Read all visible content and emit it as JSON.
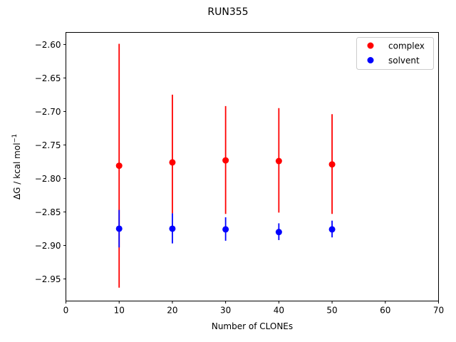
{
  "chart_data": {
    "type": "scatter",
    "title": "RUN355",
    "xlabel": "Number of CLONEs",
    "ylabel": "ΔG / kcal mol",
    "ylabel_superscript": "−1",
    "xlim": [
      0,
      70
    ],
    "ylim": [
      -2.983,
      -2.582
    ],
    "x_ticks": [
      0,
      10,
      20,
      30,
      40,
      50,
      60,
      70
    ],
    "x_tick_labels": [
      "0",
      "10",
      "20",
      "30",
      "40",
      "50",
      "60",
      "70"
    ],
    "y_ticks": [
      -2.95,
      -2.9,
      -2.85,
      -2.8,
      -2.75,
      -2.7,
      -2.65,
      -2.6
    ],
    "y_tick_labels": [
      "−2.95",
      "−2.90",
      "−2.85",
      "−2.80",
      "−2.75",
      "−2.70",
      "−2.65",
      "−2.60"
    ],
    "grid": false,
    "legend_position": "top-right",
    "series": [
      {
        "name": "complex",
        "color": "#ff0000",
        "x": [
          10,
          20,
          30,
          40,
          50
        ],
        "y": [
          -2.781,
          -2.776,
          -2.773,
          -2.774,
          -2.779
        ],
        "err_low": [
          -2.963,
          -2.852,
          -2.853,
          -2.851,
          -2.853
        ],
        "err_high": [
          -2.599,
          -2.675,
          -2.692,
          -2.695,
          -2.704
        ]
      },
      {
        "name": "solvent",
        "color": "#0000ff",
        "x": [
          10,
          20,
          30,
          40,
          50
        ],
        "y": [
          -2.875,
          -2.875,
          -2.876,
          -2.88,
          -2.876
        ],
        "err_low": [
          -2.903,
          -2.897,
          -2.893,
          -2.892,
          -2.888
        ],
        "err_high": [
          -2.847,
          -2.852,
          -2.858,
          -2.867,
          -2.863
        ]
      }
    ]
  }
}
